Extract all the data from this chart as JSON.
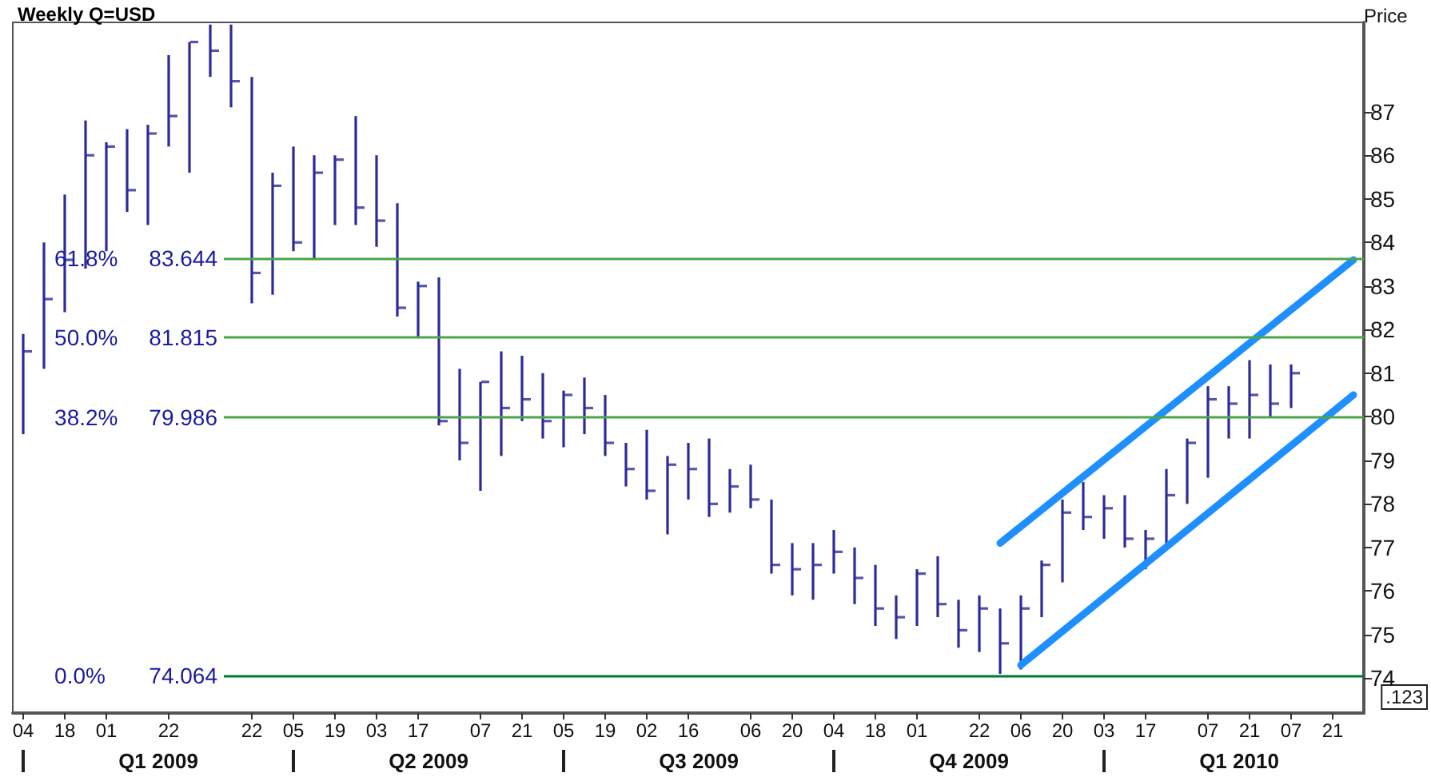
{
  "chart_data": {
    "type": "bar",
    "title": "Weekly Q=USD",
    "ylabel": "Price",
    "grid": false,
    "categories": [
      "04",
      null,
      "18",
      null,
      "01",
      null,
      null,
      "22",
      null,
      null,
      null,
      "22",
      null,
      "05",
      null,
      "19",
      null,
      "03",
      null,
      "17",
      null,
      null,
      "07",
      null,
      "21",
      null,
      "05",
      null,
      "19",
      null,
      "02",
      null,
      "16",
      null,
      null,
      "06",
      null,
      "20",
      null,
      "04",
      null,
      "18",
      null,
      "01",
      null,
      null,
      "22",
      null,
      "06",
      null,
      "20",
      null,
      "03",
      null,
      "17",
      null,
      null,
      "07",
      null,
      "21",
      null,
      "07",
      null,
      "21",
      null
    ],
    "series": [
      {
        "color": "#2b2b9a",
        "base": [
          79.6,
          81.1,
          82.4,
          83.4,
          83.8,
          84.7,
          84.4,
          86.2,
          85.6,
          87.8,
          87.1,
          82.6,
          82.8,
          83.8,
          83.6,
          84.4,
          84.4,
          83.9,
          82.3,
          81.8,
          79.8,
          79.0,
          78.3,
          79.1,
          79.9,
          79.5,
          79.3,
          79.6,
          79.1,
          78.4,
          78.1,
          77.3,
          78.1,
          77.7,
          77.8,
          77.9,
          76.4,
          75.9,
          75.8,
          76.4,
          75.7,
          75.2,
          74.9,
          75.2,
          75.4,
          74.7,
          74.6,
          74.1,
          74.2,
          75.4,
          76.2,
          77.4,
          77.2,
          77.0,
          76.5,
          77.0,
          78.0,
          78.6,
          79.5,
          79.5,
          80.0,
          80.2,
          null,
          null,
          null
        ],
        "values": [
          2.3,
          2.9,
          2.7,
          3.4,
          2.5,
          1.9,
          2.3,
          2.1,
          3.0,
          1.2,
          1.9,
          5.2,
          2.8,
          2.4,
          2.4,
          1.6,
          2.5,
          2.1,
          2.6,
          1.3,
          3.4,
          2.1,
          2.5,
          2.4,
          1.5,
          1.5,
          1.3,
          1.3,
          1.4,
          1.0,
          1.6,
          1.8,
          1.3,
          1.8,
          1.0,
          1.0,
          1.7,
          1.2,
          1.3,
          1.0,
          1.3,
          1.4,
          1.0,
          1.3,
          1.4,
          1.1,
          1.3,
          1.5,
          1.7,
          1.3,
          1.9,
          1.1,
          1.0,
          1.2,
          0.9,
          1.8,
          1.5,
          2.1,
          1.2,
          1.8,
          1.2,
          1.0,
          null,
          null,
          null
        ]
      },
      {
        "type": "scatter",
        "color": "#2b2b9a",
        "values": [
          81.5,
          82.7,
          83.6,
          86.0,
          86.2,
          85.2,
          86.5,
          86.9,
          88.6,
          88.4,
          87.7,
          83.3,
          85.3,
          84.0,
          85.6,
          85.9,
          84.8,
          84.5,
          82.5,
          83.0,
          79.9,
          79.4,
          80.8,
          80.2,
          80.4,
          79.9,
          80.5,
          80.2,
          79.4,
          78.8,
          78.3,
          78.9,
          78.8,
          78.0,
          78.4,
          78.1,
          76.6,
          76.5,
          76.6,
          76.9,
          76.3,
          75.6,
          75.4,
          76.4,
          75.7,
          75.1,
          75.6,
          74.8,
          75.6,
          76.6,
          77.8,
          77.7,
          77.9,
          77.2,
          77.2,
          78.2,
          79.4,
          80.4,
          80.3,
          80.5,
          80.3,
          81.0,
          null,
          null,
          null
        ]
      },
      {
        "type": "line",
        "color": "#1e8fff",
        "marker": "none",
        "values": [
          null,
          null,
          null,
          null,
          null,
          null,
          null,
          null,
          null,
          null,
          null,
          null,
          null,
          null,
          null,
          null,
          null,
          null,
          null,
          null,
          null,
          null,
          null,
          null,
          null,
          null,
          null,
          null,
          null,
          null,
          null,
          null,
          null,
          null,
          null,
          null,
          null,
          null,
          null,
          null,
          null,
          null,
          null,
          null,
          null,
          null,
          null,
          77.1,
          null,
          null,
          null,
          null,
          null,
          null,
          null,
          null,
          null,
          null,
          null,
          null,
          null,
          null,
          null,
          null,
          83.6
        ]
      },
      {
        "type": "line",
        "color": "#1e8fff",
        "marker": "none",
        "values": [
          null,
          null,
          null,
          null,
          null,
          null,
          null,
          null,
          null,
          null,
          null,
          null,
          null,
          null,
          null,
          null,
          null,
          null,
          null,
          null,
          null,
          null,
          null,
          null,
          null,
          null,
          null,
          null,
          null,
          null,
          null,
          null,
          null,
          null,
          null,
          null,
          null,
          null,
          null,
          null,
          null,
          null,
          null,
          null,
          null,
          null,
          null,
          null,
          74.3,
          null,
          null,
          null,
          null,
          null,
          null,
          null,
          null,
          null,
          null,
          null,
          null,
          null,
          null,
          null,
          80.5
        ]
      }
    ],
    "line_style": "solid",
    "ref_lines": [
      {
        "axis": "y",
        "value": 83.644,
        "label": "61.8%     83.644",
        "color": "#4aa64a"
      },
      {
        "axis": "y",
        "value": 81.815,
        "label": "50.0%     81.815",
        "color": "#4aa64a"
      },
      {
        "axis": "y",
        "value": 79.986,
        "label": "38.2%     79.986",
        "color": "#4aa64a"
      },
      {
        "axis": "y",
        "value": 74.064,
        "label": "0.0%       74.064",
        "color": "#007a33"
      }
    ],
    "ylim": [
      73.2,
      89.05
    ],
    "yticks": [
      74,
      75,
      76,
      77,
      78,
      79,
      80,
      81,
      82,
      83,
      84,
      85,
      86,
      87
    ],
    "annotations": [
      ".123",
      "Q1 2009",
      "Q2 2009",
      "Q3 2009",
      "Q4 2009",
      "Q1 2010"
    ]
  }
}
